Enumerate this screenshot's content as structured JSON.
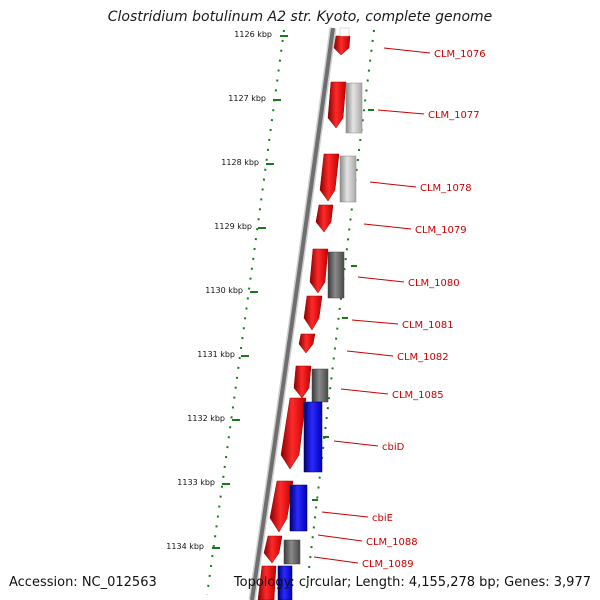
{
  "title": "Clostridium botulinum A2 str. Kyoto, complete genome",
  "footer": {
    "accession": "Accession: NC_012563",
    "topology": "Topology: circular; Length: 4,155,278 bp; Genes: 3,977"
  },
  "scale_ticks": [
    "1126 kbp",
    "1127 kbp",
    "1128 kbp",
    "1129 kbp",
    "1130 kbp",
    "1131 kbp",
    "1132 kbp",
    "1133 kbp",
    "1134 kbp"
  ],
  "gene_labels": [
    "CLM_1076",
    "CLM_1077",
    "CLM_1078",
    "CLM_1079",
    "CLM_1080",
    "CLM_1081",
    "CLM_1082",
    "CLM_1085",
    "cbiD",
    "cbiE",
    "CLM_1088",
    "CLM_1089"
  ],
  "colors": {
    "cds_red": "#ee1111",
    "cds_blue": "#1111ee",
    "feature_light_gray": "#b8b8b8",
    "feature_dark_gray": "#6a6a6a",
    "backbone": "#7a7a7a",
    "tick_green": "#1a7a1a",
    "label_red": "#cc0000"
  }
}
